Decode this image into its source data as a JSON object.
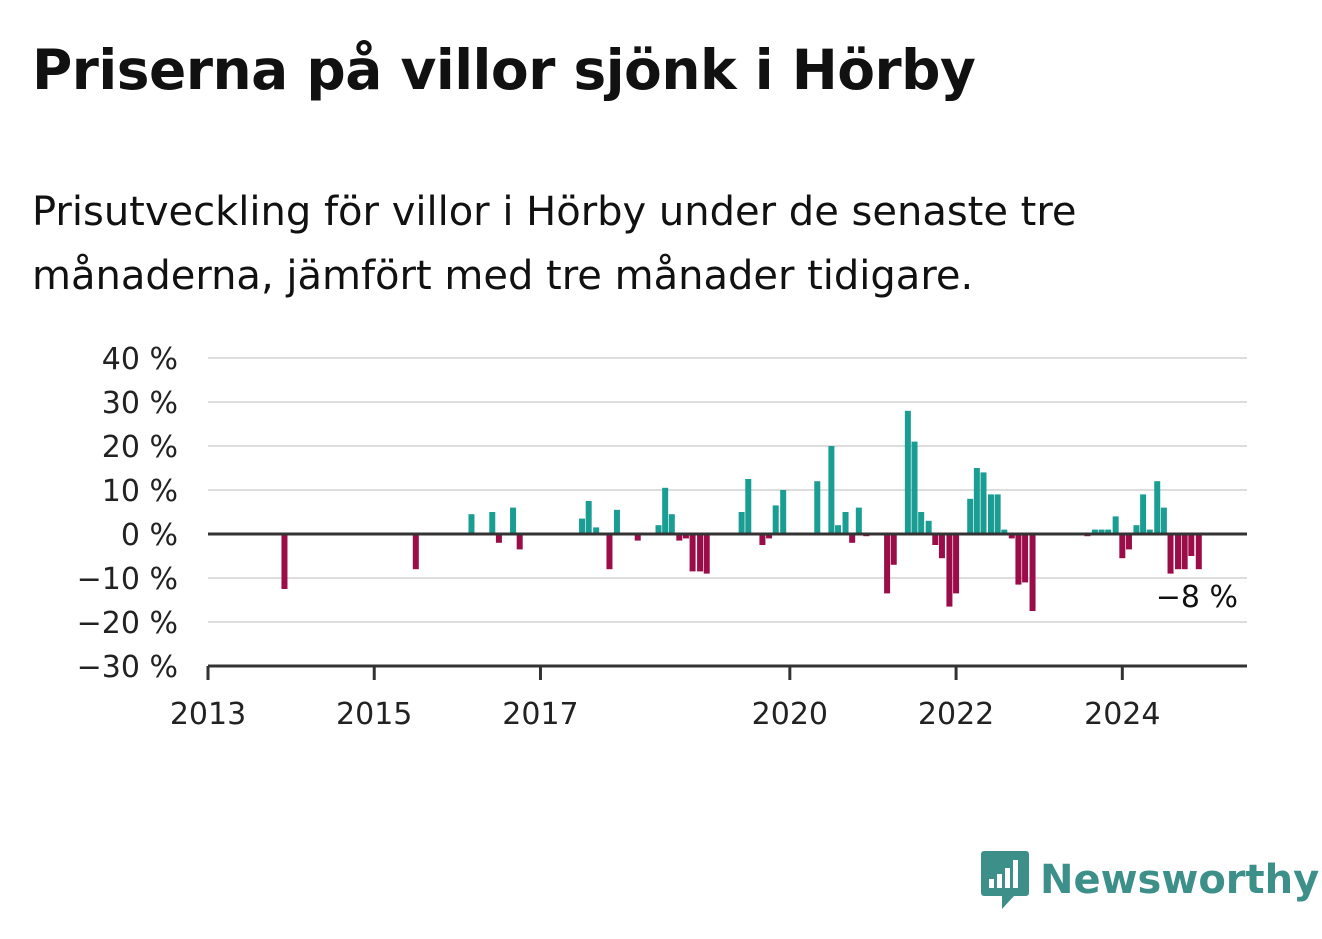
{
  "title": "Priserna på villor sjönk i Hörby",
  "subtitle": "Prisutveckling för villor i Hörby under de senaste tre månaderna, jämfört med tre månader tidigare.",
  "brand": {
    "name": "Newsworthy",
    "icon": "newsworthy-logo-icon",
    "color": "#3d8f8a"
  },
  "chart_data": {
    "type": "bar",
    "title": "Priserna på villor sjönk i Hörby",
    "subtitle": "Prisutveckling för villor i Hörby under de senaste tre månaderna, jämfört med tre månader tidigare.",
    "xlabel": "",
    "ylabel": "",
    "xlim": [
      2013,
      2025.5
    ],
    "ylim": [
      -30,
      40
    ],
    "y_ticks": [
      40,
      30,
      20,
      10,
      0,
      -10,
      -20,
      -30
    ],
    "y_tick_labels": [
      "40 %",
      "30 %",
      "20 %",
      "10 %",
      "0 %",
      "−10 %",
      "−20 %",
      "−30 %"
    ],
    "x_ticks": [
      2013,
      2015,
      2017,
      2020,
      2022,
      2024
    ],
    "x_tick_labels": [
      "2013",
      "2015",
      "2017",
      "2020",
      "2022",
      "2024"
    ],
    "grid": true,
    "legend": "none",
    "colors": {
      "positive": "#1a9e94",
      "negative": "#9b0d48",
      "grid": "#dddddd",
      "axis": "#333333"
    },
    "end_label": "−8 %",
    "x": [
      2013.92,
      2015.5,
      2016.17,
      2016.42,
      2016.5,
      2016.67,
      2016.75,
      2017.5,
      2017.58,
      2017.67,
      2017.83,
      2017.92,
      2018.17,
      2018.42,
      2018.5,
      2018.58,
      2018.67,
      2018.75,
      2018.83,
      2018.92,
      2019.0,
      2019.42,
      2019.5,
      2019.67,
      2019.75,
      2019.83,
      2019.92,
      2020.33,
      2020.5,
      2020.58,
      2020.67,
      2020.75,
      2020.83,
      2020.92,
      2021.17,
      2021.25,
      2021.42,
      2021.5,
      2021.58,
      2021.67,
      2021.75,
      2021.83,
      2021.92,
      2022.0,
      2022.17,
      2022.25,
      2022.33,
      2022.42,
      2022.5,
      2022.58,
      2022.67,
      2022.75,
      2022.83,
      2022.92,
      2023.58,
      2023.67,
      2023.75,
      2023.83,
      2023.92,
      2024.0,
      2024.08,
      2024.17,
      2024.25,
      2024.33,
      2024.42,
      2024.5,
      2024.58,
      2024.67,
      2024.75,
      2024.83,
      2024.92
    ],
    "values": [
      -12.5,
      -8,
      4.5,
      5,
      -2,
      6,
      -3.5,
      3.5,
      7.5,
      1.5,
      -8,
      5.5,
      -1.5,
      2,
      10.5,
      4.5,
      -1.5,
      -1,
      -8.5,
      -8.5,
      -9,
      5,
      12.5,
      -2.5,
      -1,
      6.5,
      10,
      12,
      20,
      2,
      5,
      -2,
      6,
      -0.5,
      -13.5,
      -7,
      28,
      21,
      5,
      3,
      -2.5,
      -5.5,
      -16.5,
      -13.5,
      8,
      15,
      14,
      9,
      9,
      1,
      -1,
      -11.5,
      -11,
      -17.5,
      -0.5,
      1,
      1,
      1,
      4,
      -5.5,
      -3.5,
      2,
      9,
      1,
      12,
      6,
      -9,
      -8,
      -8,
      -5,
      -8
    ]
  }
}
